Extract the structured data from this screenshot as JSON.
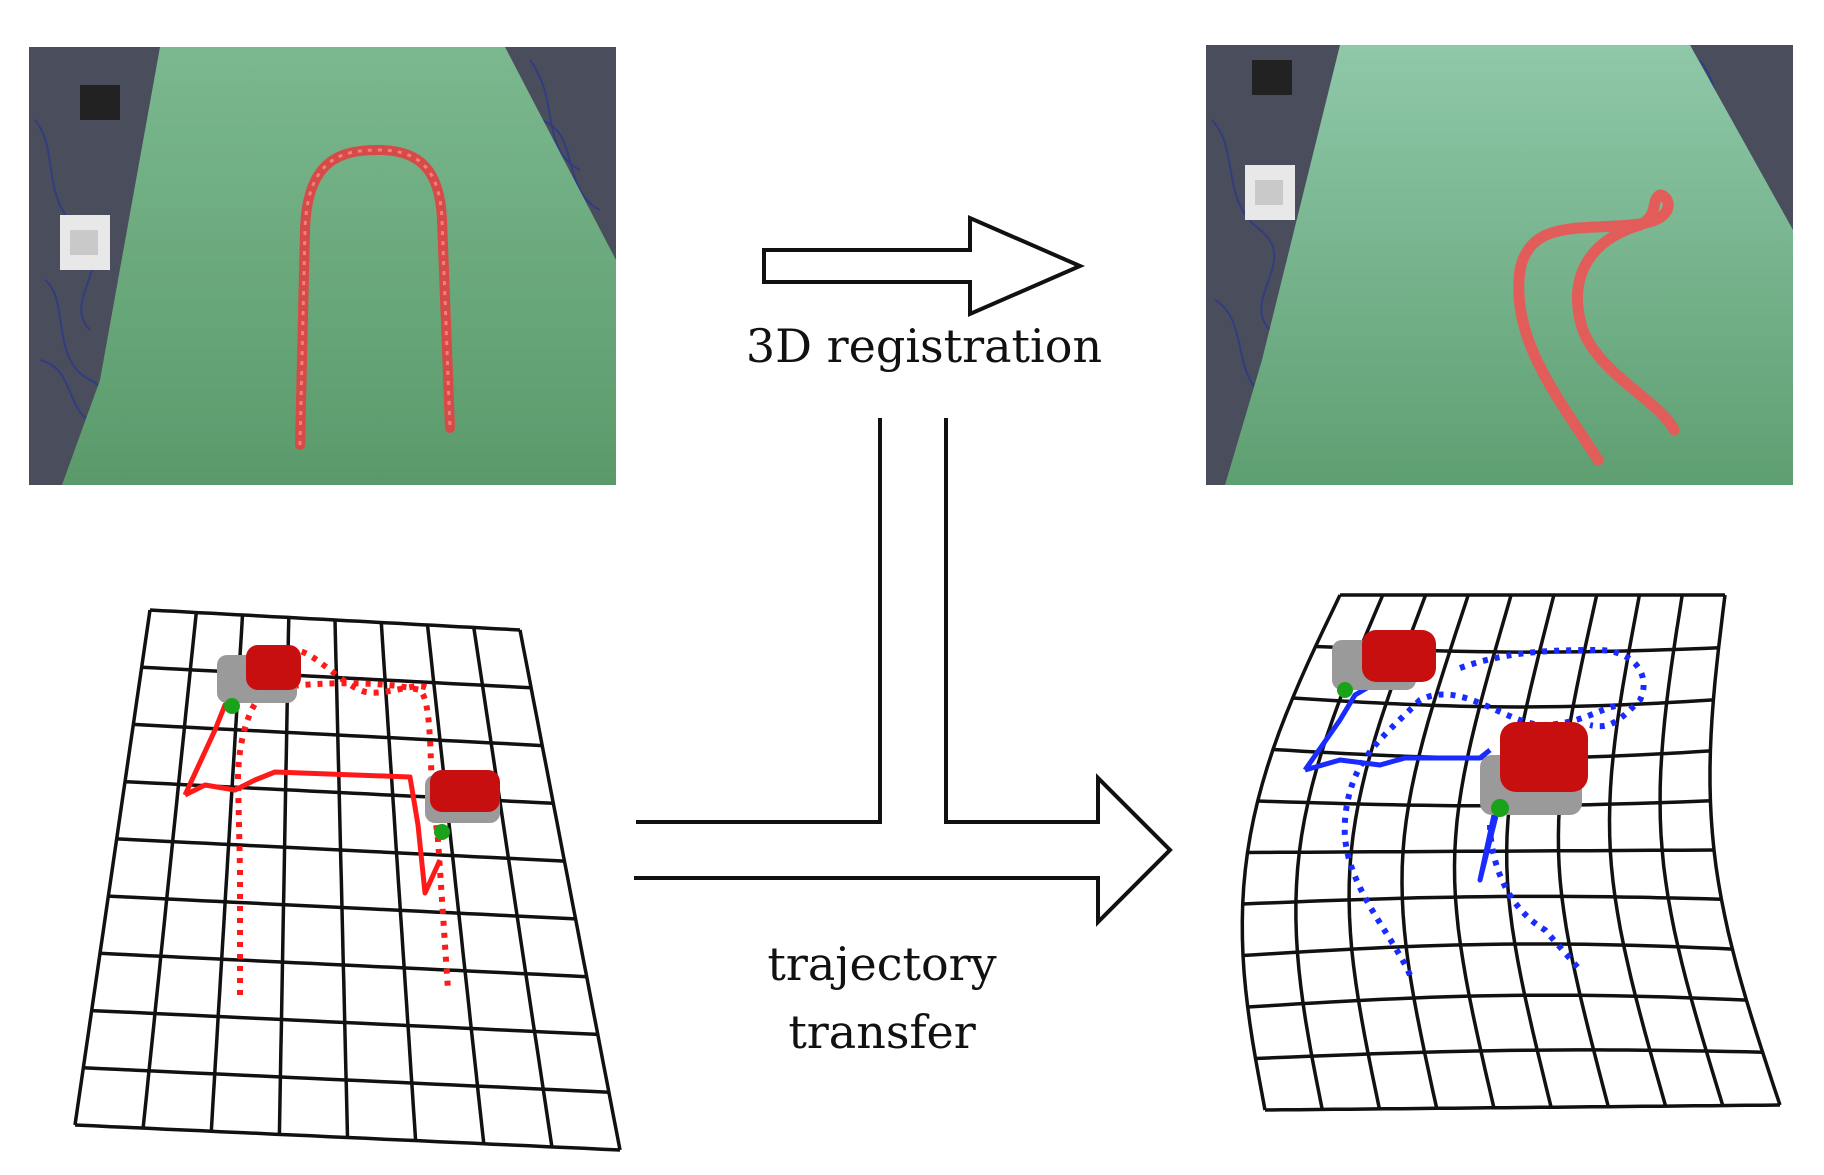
{
  "labels": {
    "registration": "3D registration",
    "transfer_line1": "trajectory",
    "transfer_line2": "transfer"
  },
  "colors": {
    "table_green": "#5e9e6c",
    "rope_red": "#d64a48",
    "traj_red": "#ff1a1a",
    "traj_blue": "#1a2bff",
    "gripper_red": "#c80f0f",
    "gripper_gray": "#9a9a9a",
    "gripper_green": "#1aa31a"
  },
  "icons": {
    "left_photo": "rope-u-shape-photo",
    "right_photo": "rope-curved-photo",
    "arrow_top": "hollow-right-arrow",
    "arrow_bottom": "t-junction-right-arrow",
    "left_plot": "grid-with-red-trajectory",
    "right_plot": "warped-grid-with-blue-trajectory"
  }
}
